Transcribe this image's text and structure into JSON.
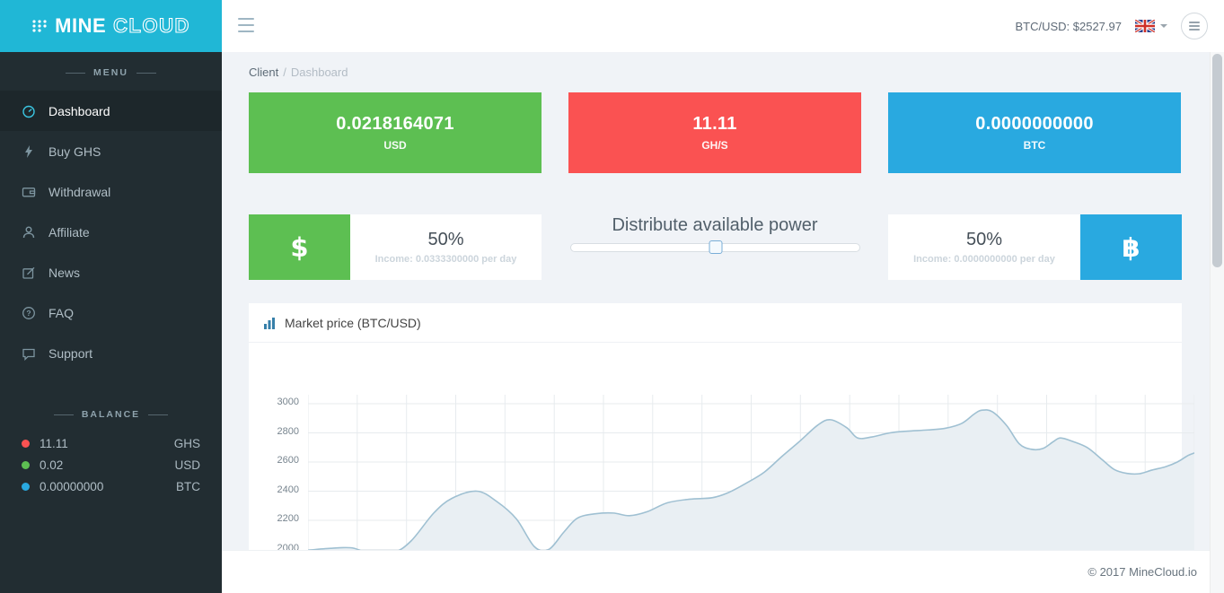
{
  "header": {
    "logo_mine": "MINE",
    "logo_cloud": "CLOUD",
    "ticker": "BTC/USD: $2527.97"
  },
  "breadcrumb": {
    "parent": "Client",
    "separator": "/",
    "current": "Dashboard"
  },
  "sidebar": {
    "menu_label": "MENU",
    "items": [
      {
        "label": "Dashboard"
      },
      {
        "label": "Buy GHS"
      },
      {
        "label": "Withdrawal"
      },
      {
        "label": "Affiliate"
      },
      {
        "label": "News"
      },
      {
        "label": "FAQ"
      },
      {
        "label": "Support"
      }
    ],
    "balance_label": "BALANCE",
    "balances": [
      {
        "value": "11.11",
        "currency": "GHS",
        "dot_color": "#fa5252"
      },
      {
        "value": "0.02",
        "currency": "USD",
        "dot_color": "#5dbf52"
      },
      {
        "value": "0.00000000",
        "currency": "BTC",
        "dot_color": "#29a9e0"
      }
    ]
  },
  "stat_cards": [
    {
      "value": "0.0218164071",
      "label": "USD",
      "color": "#5dbf52"
    },
    {
      "value": "11.11",
      "label": "GH/S",
      "color": "#fa5252"
    },
    {
      "value": "0.0000000000",
      "label": "BTC",
      "color": "#29a9e0"
    }
  ],
  "distribution": {
    "title": "Distribute available power",
    "slider_percent": 50,
    "usd": {
      "symbol": "$",
      "percent": "50%",
      "income": "Income: 0.0333300000 per day",
      "color": "#5dbf52"
    },
    "btc": {
      "symbol": "฿",
      "percent": "50%",
      "income": "Income: 0.0000000000 per day",
      "color": "#29a9e0"
    }
  },
  "market_panel": {
    "title": "Market price (BTC/USD)",
    "icon_color": "#367fa9"
  },
  "chart_data": {
    "type": "area",
    "title": "Market price (BTC/USD)",
    "yticks": [
      2000,
      2200,
      2400,
      2600,
      2800,
      3000
    ],
    "ylim": [
      1950,
      3050
    ],
    "grid": true,
    "grid_color": "#e7ebee",
    "line_color": "#9fc0d2",
    "fill_color": "#e9eff3",
    "points": [
      [
        0,
        1995
      ],
      [
        25,
        2008
      ],
      [
        50,
        2010
      ],
      [
        72,
        1962
      ],
      [
        95,
        1975
      ],
      [
        115,
        2060
      ],
      [
        140,
        2250
      ],
      [
        160,
        2350
      ],
      [
        188,
        2400
      ],
      [
        210,
        2330
      ],
      [
        232,
        2210
      ],
      [
        252,
        2020
      ],
      [
        268,
        2000
      ],
      [
        285,
        2120
      ],
      [
        300,
        2215
      ],
      [
        320,
        2245
      ],
      [
        340,
        2250
      ],
      [
        358,
        2232
      ],
      [
        378,
        2260
      ],
      [
        400,
        2320
      ],
      [
        425,
        2345
      ],
      [
        450,
        2355
      ],
      [
        468,
        2390
      ],
      [
        488,
        2455
      ],
      [
        508,
        2530
      ],
      [
        528,
        2640
      ],
      [
        548,
        2745
      ],
      [
        568,
        2855
      ],
      [
        582,
        2890
      ],
      [
        600,
        2835
      ],
      [
        612,
        2765
      ],
      [
        628,
        2772
      ],
      [
        648,
        2800
      ],
      [
        668,
        2812
      ],
      [
        690,
        2820
      ],
      [
        710,
        2832
      ],
      [
        728,
        2865
      ],
      [
        742,
        2930
      ],
      [
        750,
        2955
      ],
      [
        762,
        2945
      ],
      [
        778,
        2850
      ],
      [
        792,
        2725
      ],
      [
        805,
        2688
      ],
      [
        818,
        2692
      ],
      [
        830,
        2740
      ],
      [
        838,
        2765
      ],
      [
        852,
        2740
      ],
      [
        868,
        2698
      ],
      [
        884,
        2618
      ],
      [
        898,
        2548
      ],
      [
        912,
        2522
      ],
      [
        926,
        2520
      ],
      [
        940,
        2545
      ],
      [
        955,
        2568
      ],
      [
        968,
        2600
      ],
      [
        980,
        2645
      ],
      [
        987,
        2662
      ]
    ]
  },
  "footer": {
    "copyright": "© 2017 MineCloud.io"
  }
}
